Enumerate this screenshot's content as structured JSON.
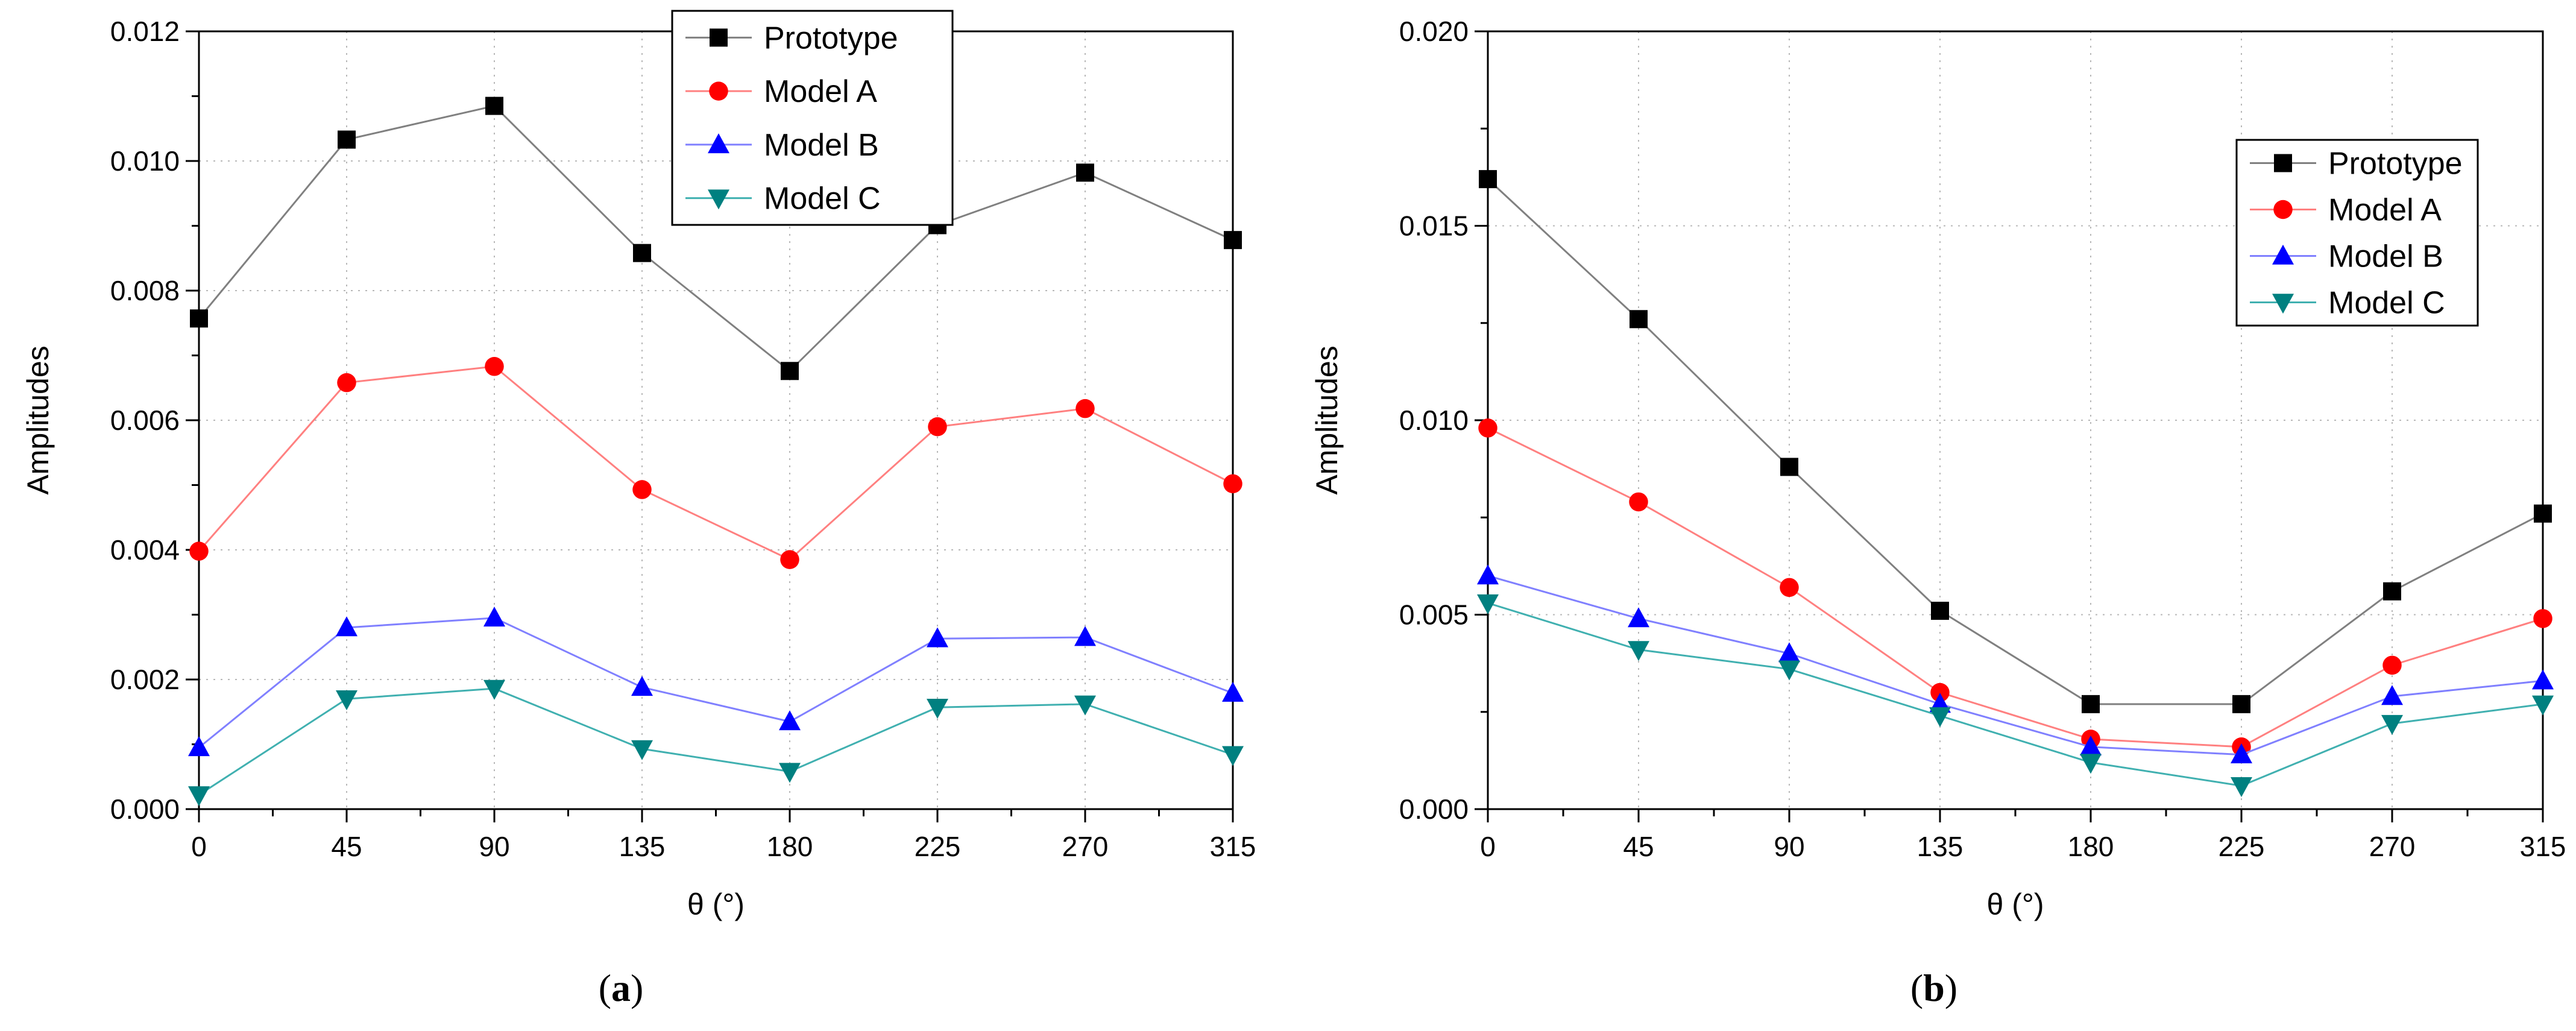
{
  "chart_data": [
    {
      "type": "line",
      "caption_open": "(",
      "caption_letter": "a",
      "caption_close": ")",
      "xlabel": "θ (°)",
      "ylabel": "Amplitudes",
      "x": [
        0,
        45,
        90,
        135,
        180,
        225,
        270,
        315
      ],
      "xlim": [
        0,
        315
      ],
      "ylim": [
        0,
        0.012
      ],
      "yticks": [
        0.0,
        0.002,
        0.004,
        0.006,
        0.008,
        0.01,
        0.012
      ],
      "ytick_labels": [
        "0.000",
        "0.002",
        "0.004",
        "0.006",
        "0.008",
        "0.010",
        "0.012"
      ],
      "xtick_labels": [
        "0",
        "45",
        "90",
        "135",
        "180",
        "225",
        "270",
        "315"
      ],
      "grid": true,
      "legend_position": "top-center",
      "series": [
        {
          "name": "Prototype",
          "marker": "square",
          "line_color": "#808080",
          "marker_color": "#000000",
          "values": [
            0.00757,
            0.01033,
            0.01085,
            0.00858,
            0.00676,
            0.00901,
            0.00982,
            0.00878
          ]
        },
        {
          "name": "Model A",
          "marker": "circle",
          "line_color": "#ff8080",
          "marker_color": "#ff0000",
          "values": [
            0.00398,
            0.00658,
            0.00683,
            0.00493,
            0.00385,
            0.0059,
            0.00618,
            0.00502
          ]
        },
        {
          "name": "Model B",
          "marker": "triangle-up",
          "line_color": "#8080ff",
          "marker_color": "#0000ff",
          "values": [
            0.00095,
            0.0028,
            0.00295,
            0.00188,
            0.00135,
            0.00263,
            0.00265,
            0.00179
          ]
        },
        {
          "name": "Model C",
          "marker": "triangle-down",
          "line_color": "#40b0b0",
          "marker_color": "#008080",
          "values": [
            0.00022,
            0.0017,
            0.00186,
            0.00093,
            0.00058,
            0.00157,
            0.00162,
            0.00084
          ]
        }
      ]
    },
    {
      "type": "line",
      "caption_open": "(",
      "caption_letter": "b",
      "caption_close": ")",
      "xlabel": "θ (°)",
      "ylabel": "Amplitudes",
      "x": [
        0,
        45,
        90,
        135,
        180,
        225,
        270,
        315
      ],
      "xlim": [
        0,
        315
      ],
      "ylim": [
        0,
        0.02
      ],
      "yticks": [
        0.0,
        0.005,
        0.01,
        0.015,
        0.02
      ],
      "ytick_labels": [
        "0.000",
        "0.005",
        "0.010",
        "0.015",
        "0.020"
      ],
      "xtick_labels": [
        "0",
        "45",
        "90",
        "135",
        "180",
        "225",
        "270",
        "315"
      ],
      "grid": true,
      "legend_position": "top-right",
      "series": [
        {
          "name": "Prototype",
          "marker": "square",
          "line_color": "#808080",
          "marker_color": "#000000",
          "values": [
            0.0162,
            0.0126,
            0.0088,
            0.0051,
            0.0027,
            0.0027,
            0.0056,
            0.0076
          ]
        },
        {
          "name": "Model A",
          "marker": "circle",
          "line_color": "#ff8080",
          "marker_color": "#ff0000",
          "values": [
            0.0098,
            0.0079,
            0.0057,
            0.003,
            0.0018,
            0.0016,
            0.0037,
            0.0049
          ]
        },
        {
          "name": "Model B",
          "marker": "triangle-up",
          "line_color": "#8080ff",
          "marker_color": "#0000ff",
          "values": [
            0.006,
            0.0049,
            0.004,
            0.0027,
            0.0016,
            0.0014,
            0.0029,
            0.0033
          ]
        },
        {
          "name": "Model C",
          "marker": "triangle-down",
          "line_color": "#40b0b0",
          "marker_color": "#008080",
          "values": [
            0.0053,
            0.0041,
            0.0036,
            0.0024,
            0.0012,
            0.0006,
            0.0022,
            0.0027
          ]
        }
      ]
    }
  ]
}
